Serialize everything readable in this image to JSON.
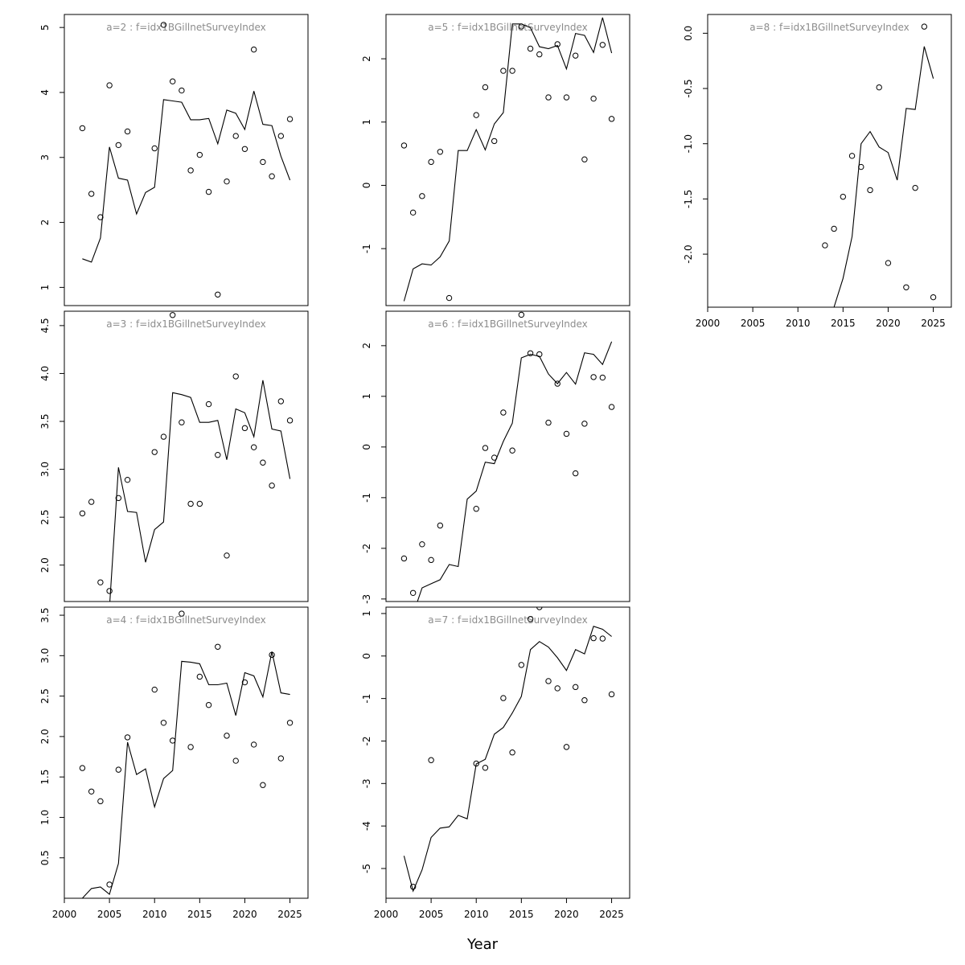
{
  "figure": {
    "xlabel": "Year"
  },
  "chart_data": [
    {
      "type": "line",
      "title": "a=2  :  f=idx1BGillnetSurveyIndex",
      "xlim": [
        2000,
        2027
      ],
      "ylim": [
        0.72,
        5.2
      ],
      "xticks": [],
      "yticks": [
        1,
        2,
        3,
        4,
        5
      ],
      "fitted": {
        "x": [
          2002,
          2003,
          2004,
          2005,
          2006,
          2007,
          2008,
          2009,
          2010,
          2011,
          2012,
          2013,
          2014,
          2015,
          2016,
          2017,
          2018,
          2019,
          2020,
          2021,
          2022,
          2023,
          2024,
          2025
        ],
        "y": [
          1.44,
          1.39,
          1.76,
          3.16,
          2.68,
          2.65,
          2.13,
          2.46,
          2.54,
          3.89,
          3.87,
          3.85,
          3.58,
          3.58,
          3.6,
          3.21,
          3.73,
          3.68,
          3.43,
          4.02,
          3.51,
          3.49,
          3.02,
          2.65
        ]
      },
      "observed": {
        "x": [
          2002,
          2003,
          2004,
          2005,
          2006,
          2007,
          2010,
          2011,
          2012,
          2013,
          2014,
          2015,
          2016,
          2017,
          2018,
          2019,
          2020,
          2021,
          2022,
          2023,
          2024,
          2025
        ],
        "y": [
          3.45,
          2.44,
          2.08,
          4.11,
          3.19,
          3.4,
          3.14,
          5.04,
          4.17,
          4.03,
          2.8,
          3.04,
          2.47,
          0.89,
          2.63,
          3.33,
          3.13,
          4.66,
          2.93,
          2.71,
          3.33,
          3.59
        ]
      }
    },
    {
      "type": "line",
      "title": "a=3  :  f=idx1BGillnetSurveyIndex",
      "xlim": [
        2000,
        2027
      ],
      "ylim": [
        1.62,
        4.65
      ],
      "xticks": [],
      "yticks": [
        2.0,
        2.5,
        3.0,
        3.5,
        4.0,
        4.5
      ],
      "ytick_labels": [
        "2.0",
        "2.5",
        "3.0",
        "3.5",
        "4.0",
        "4.5"
      ],
      "fitted": {
        "x": [
          2002,
          2003,
          2004,
          2005,
          2006,
          2007,
          2008,
          2009,
          2010,
          2011,
          2012,
          2013,
          2014,
          2015,
          2016,
          2017,
          2018,
          2019,
          2020,
          2021,
          2022,
          2023,
          2024,
          2025
        ],
        "y": [
          1.45,
          1.4,
          1.5,
          1.55,
          3.02,
          2.56,
          2.55,
          2.03,
          2.37,
          2.45,
          3.8,
          3.78,
          3.75,
          3.49,
          3.49,
          3.51,
          3.1,
          3.63,
          3.59,
          3.34,
          3.93,
          3.42,
          3.4,
          2.9
        ]
      },
      "observed": {
        "x": [
          2002,
          2003,
          2004,
          2005,
          2006,
          2007,
          2010,
          2011,
          2012,
          2013,
          2014,
          2015,
          2016,
          2017,
          2018,
          2019,
          2020,
          2021,
          2022,
          2023,
          2024,
          2025
        ],
        "y": [
          2.54,
          2.66,
          1.82,
          1.73,
          2.7,
          2.89,
          3.18,
          3.34,
          4.61,
          3.49,
          2.64,
          2.64,
          3.68,
          3.15,
          2.1,
          3.97,
          3.43,
          3.23,
          3.07,
          2.83,
          3.71,
          3.51
        ]
      }
    },
    {
      "type": "line",
      "title": "a=4  :  f=idx1BGillnetSurveyIndex",
      "xlim": [
        2000,
        2027
      ],
      "ylim": [
        0.0,
        3.6
      ],
      "xticks": [
        2000,
        2005,
        2010,
        2015,
        2020,
        2025
      ],
      "yticks": [
        0.5,
        1.0,
        1.5,
        2.0,
        2.5,
        3.0,
        3.5
      ],
      "ytick_labels": [
        "0.5",
        "1.0",
        "1.5",
        "2.0",
        "2.5",
        "3.0",
        "3.5"
      ],
      "fitted": {
        "x": [
          2002,
          2003,
          2004,
          2005,
          2006,
          2007,
          2008,
          2009,
          2010,
          2011,
          2012,
          2013,
          2014,
          2015,
          2016,
          2017,
          2018,
          2019,
          2020,
          2021,
          2022,
          2023,
          2024,
          2025
        ],
        "y": [
          0.0,
          0.12,
          0.14,
          0.05,
          0.43,
          1.93,
          1.53,
          1.6,
          1.13,
          1.48,
          1.58,
          2.93,
          2.92,
          2.9,
          2.64,
          2.64,
          2.66,
          2.26,
          2.79,
          2.75,
          2.49,
          3.05,
          2.54,
          2.52
        ]
      },
      "observed": {
        "x": [
          2002,
          2003,
          2004,
          2005,
          2006,
          2007,
          2010,
          2011,
          2012,
          2013,
          2014,
          2015,
          2016,
          2017,
          2018,
          2019,
          2020,
          2021,
          2022,
          2023,
          2024,
          2025
        ],
        "y": [
          1.61,
          1.32,
          1.2,
          0.17,
          1.59,
          1.99,
          2.58,
          2.17,
          1.95,
          3.52,
          1.87,
          2.74,
          2.39,
          3.11,
          2.01,
          1.7,
          2.67,
          1.9,
          1.4,
          3.01,
          1.73,
          2.17
        ]
      }
    },
    {
      "type": "line",
      "title": "a=5  :  f=idx1BGillnetSurveyIndex",
      "xlim": [
        2000,
        2027
      ],
      "ylim": [
        -1.9,
        2.7
      ],
      "xticks": [],
      "yticks": [
        -1,
        0,
        1,
        2
      ],
      "fitted": {
        "x": [
          2002,
          2003,
          2004,
          2005,
          2006,
          2007,
          2008,
          2009,
          2010,
          2011,
          2012,
          2013,
          2014,
          2015,
          2016,
          2017,
          2018,
          2019,
          2020,
          2021,
          2022,
          2023,
          2024,
          2025
        ],
        "y": [
          -1.83,
          -1.32,
          -1.24,
          -1.26,
          -1.13,
          -0.88,
          0.55,
          0.55,
          0.88,
          0.56,
          0.97,
          1.15,
          2.55,
          2.55,
          2.49,
          2.19,
          2.16,
          2.21,
          1.84,
          2.4,
          2.37,
          2.1,
          2.65,
          2.09
        ]
      },
      "observed": {
        "x": [
          2002,
          2003,
          2004,
          2005,
          2006,
          2007,
          2010,
          2011,
          2012,
          2013,
          2014,
          2015,
          2016,
          2017,
          2018,
          2019,
          2020,
          2021,
          2022,
          2023,
          2024,
          2025
        ],
        "y": [
          0.63,
          -0.43,
          -0.17,
          0.37,
          0.53,
          -1.78,
          1.11,
          1.55,
          0.7,
          1.81,
          1.81,
          2.51,
          2.16,
          2.07,
          1.39,
          2.23,
          1.39,
          2.05,
          0.41,
          1.37,
          2.22,
          1.05
        ]
      }
    },
    {
      "type": "line",
      "title": "a=6  :  f=idx1BGillnetSurveyIndex",
      "xlim": [
        2000,
        2027
      ],
      "ylim": [
        -3.05,
        2.68
      ],
      "xticks": [],
      "yticks": [
        -3,
        -2,
        -1,
        0,
        1,
        2
      ],
      "fitted": {
        "x": [
          2002,
          2003,
          2004,
          2005,
          2006,
          2007,
          2008,
          2009,
          2010,
          2011,
          2012,
          2013,
          2014,
          2015,
          2016,
          2017,
          2018,
          2019,
          2020,
          2021,
          2022,
          2023,
          2024,
          2025
        ],
        "y": [
          -3.3,
          -3.3,
          -2.78,
          -2.7,
          -2.62,
          -2.32,
          -2.36,
          -1.03,
          -0.87,
          -0.3,
          -0.33,
          0.11,
          0.47,
          1.76,
          1.83,
          1.79,
          1.44,
          1.25,
          1.47,
          1.24,
          1.86,
          1.83,
          1.63,
          2.08
        ]
      },
      "observed": {
        "x": [
          2002,
          2003,
          2004,
          2005,
          2006,
          2010,
          2011,
          2012,
          2013,
          2014,
          2015,
          2016,
          2017,
          2018,
          2019,
          2020,
          2021,
          2022,
          2023,
          2024,
          2025
        ],
        "y": [
          -2.2,
          -2.88,
          -1.92,
          -2.23,
          -1.55,
          -1.22,
          -0.02,
          -0.21,
          0.68,
          -0.07,
          2.61,
          1.85,
          1.83,
          0.48,
          1.25,
          0.26,
          -0.52,
          0.46,
          1.38,
          1.37,
          0.79
        ]
      }
    },
    {
      "type": "line",
      "title": "a=7  :  f=idx1BGillnetSurveyIndex",
      "xlim": [
        2000,
        2027
      ],
      "ylim": [
        -5.7,
        1.15
      ],
      "xticks": [
        2000,
        2005,
        2010,
        2015,
        2020,
        2025
      ],
      "yticks": [
        -5,
        -4,
        -3,
        -2,
        -1,
        0,
        1
      ],
      "fitted": {
        "x": [
          2002,
          2003,
          2004,
          2005,
          2006,
          2007,
          2008,
          2009,
          2010,
          2011,
          2012,
          2013,
          2014,
          2015,
          2016,
          2017,
          2018,
          2019,
          2020,
          2021,
          2022,
          2023,
          2024,
          2025
        ],
        "y": [
          -4.7,
          -5.53,
          -5.03,
          -4.27,
          -4.05,
          -4.02,
          -3.75,
          -3.83,
          -2.54,
          -2.43,
          -1.84,
          -1.68,
          -1.34,
          -0.95,
          0.15,
          0.34,
          0.21,
          -0.04,
          -0.34,
          0.15,
          0.05,
          0.7,
          0.63,
          0.46
        ]
      },
      "observed": {
        "x": [
          2003,
          2005,
          2010,
          2011,
          2013,
          2014,
          2015,
          2016,
          2017,
          2018,
          2019,
          2020,
          2021,
          2022,
          2023,
          2024,
          2025
        ],
        "y": [
          -5.43,
          -2.45,
          -2.53,
          -2.63,
          -0.99,
          -2.27,
          -0.21,
          0.87,
          1.15,
          -0.59,
          -0.76,
          -2.14,
          -0.73,
          -1.04,
          0.42,
          0.41,
          -0.9
        ]
      }
    },
    {
      "type": "line",
      "title": "a=8  :  f=idx1BGillnetSurveyIndex",
      "xlim": [
        2000,
        2027
      ],
      "ylim": [
        -2.48,
        0.17
      ],
      "xticks": [
        2000,
        2005,
        2010,
        2015,
        2020,
        2025
      ],
      "yticks": [
        -2.0,
        -1.5,
        -1.0,
        -0.5,
        0.0
      ],
      "ytick_labels": [
        "-2.0",
        "-1.5",
        "-1.0",
        "-0.5",
        "0.0"
      ],
      "fitted": {
        "x": [
          2014,
          2015,
          2016,
          2017,
          2018,
          2019,
          2020,
          2021,
          2022,
          2023,
          2024,
          2025
        ],
        "y": [
          -2.48,
          -2.22,
          -1.84,
          -1.0,
          -0.89,
          -1.03,
          -1.08,
          -1.33,
          -0.68,
          -0.69,
          -0.12,
          -0.41
        ]
      },
      "observed": {
        "x": [
          2013,
          2014,
          2015,
          2016,
          2017,
          2018,
          2019,
          2020,
          2022,
          2023,
          2024,
          2025
        ],
        "y": [
          -1.92,
          -1.77,
          -1.48,
          -1.11,
          -1.21,
          -1.42,
          -0.49,
          -2.08,
          -2.3,
          -1.4,
          0.06,
          -2.39
        ]
      }
    }
  ]
}
